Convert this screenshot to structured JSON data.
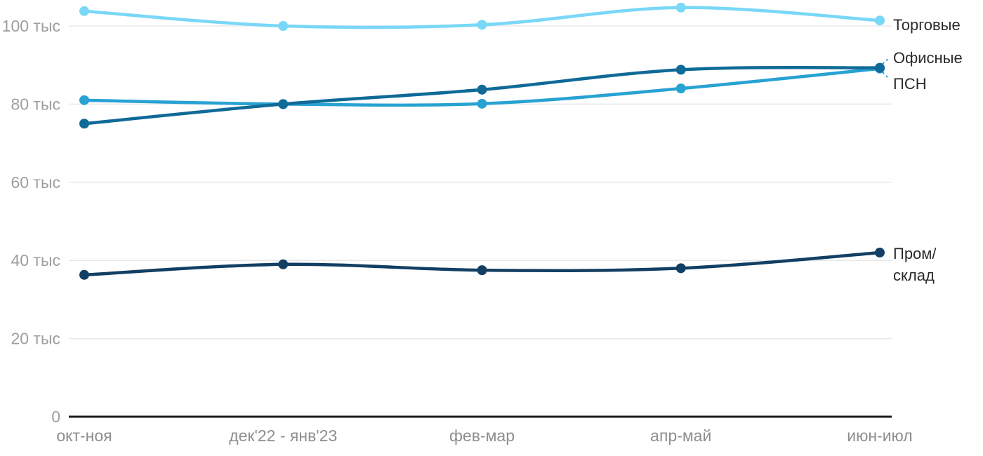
{
  "chart_data": {
    "type": "line",
    "title": "",
    "xlabel": "",
    "ylabel": "",
    "unit": "тыс",
    "x_categories": [
      "окт-ноя",
      "дек'22 - янв'23",
      "фев-мар",
      "апр-май",
      "июн-июл"
    ],
    "y_ticks": [
      {
        "value": 0,
        "label": "0"
      },
      {
        "value": 20,
        "label": "20 тыс"
      },
      {
        "value": 40,
        "label": "40 тыс"
      },
      {
        "value": 60,
        "label": "60 тыс"
      },
      {
        "value": 80,
        "label": "80 тыс"
      },
      {
        "value": 100,
        "label": "100 тыс"
      }
    ],
    "ylim": [
      0,
      107
    ],
    "grid": "horizontal-only",
    "legend_position": "right-of-line-ends",
    "series": [
      {
        "name": "Торговые",
        "key": "torgovye",
        "color": "#79D7F7",
        "values": [
          103.8,
          100,
          100.3,
          104.7,
          101.4
        ],
        "label_lines": [
          "Торговые"
        ],
        "leader": false
      },
      {
        "name": "Офисные",
        "key": "ofisnye",
        "color": "#0F6A97",
        "values": [
          75,
          80,
          83.7,
          88.8,
          89.3
        ],
        "label_lines": [
          "Офисные"
        ],
        "leader": true
      },
      {
        "name": "ПСН",
        "key": "psn",
        "color": "#27A2D3",
        "values": [
          81,
          80,
          80.1,
          84,
          89.1
        ],
        "label_lines": [
          "ПСН"
        ],
        "leader": true
      },
      {
        "name": "Пром/склад",
        "key": "prom-sklad",
        "color": "#123F63",
        "values": [
          36.3,
          39,
          37.5,
          38,
          42
        ],
        "label_lines": [
          "Пром/",
          "склад"
        ]
      }
    ],
    "colors": {
      "grid": "#E8E8E8",
      "axis": "#1A1A1A",
      "y_tick_text": "#9E9E9E",
      "x_tick_text": "#8E8E8E",
      "series_label_text": "#2A2A2A",
      "leader_dash": "#27A2D3"
    }
  }
}
